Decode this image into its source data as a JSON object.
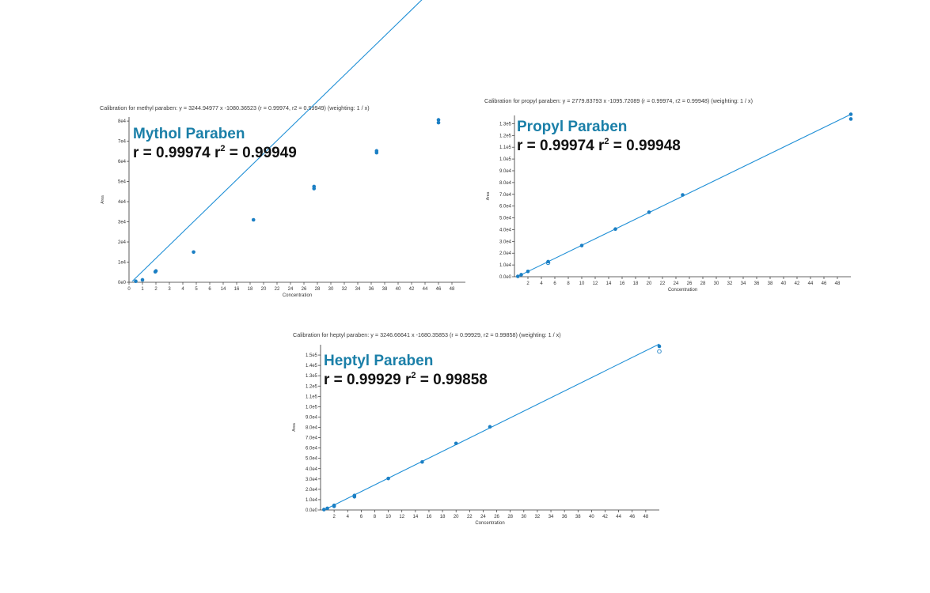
{
  "chart_data": [
    {
      "type": "scatter",
      "title": "Calibration for methyl paraben: y = 3244.94977 x -1080.36523 (r = 0.99974, r2 = 0.99949) (weighting: 1 / x)",
      "annotation_name": "Mythol Paraben",
      "annotation_r_text": "r = 0.99974 r",
      "annotation_sup": "2",
      "annotation_r2_text": " = 0.99949",
      "xlabel": "Concentration",
      "ylabel": "Area",
      "xlim": [
        0,
        50
      ],
      "ylim": [
        0,
        82000
      ],
      "xticks": [
        "0",
        "1",
        "2",
        "3",
        "4",
        "5",
        "6",
        "14",
        "16",
        "18",
        "20",
        "22",
        "24",
        "26",
        "28",
        "30",
        "32",
        "34",
        "36",
        "38",
        "40",
        "42",
        "44",
        "46",
        "48"
      ],
      "yticks": [
        {
          "value": 0,
          "label": "0e0"
        },
        {
          "value": 10000,
          "label": "1e4"
        },
        {
          "value": 20000,
          "label": "2e4"
        },
        {
          "value": 30000,
          "label": "3e4"
        },
        {
          "value": 40000,
          "label": "4e4"
        },
        {
          "value": 50000,
          "label": "5e4"
        },
        {
          "value": 60000,
          "label": "6e4"
        },
        {
          "value": 70000,
          "label": "7e4"
        },
        {
          "value": 80000,
          "label": "8e4"
        }
      ],
      "fit": {
        "slope": 3244.94977,
        "intercept": -1080.36523,
        "x_range": [
          0.5,
          47.5
        ]
      },
      "points": [
        {
          "x": 1.0,
          "y": 500,
          "open": false
        },
        {
          "x": 2.0,
          "y": 1200,
          "open": false
        },
        {
          "x": 3.9,
          "y": 5200,
          "open": false
        },
        {
          "x": 4.0,
          "y": 5600,
          "open": false
        },
        {
          "x": 9.6,
          "y": 15000,
          "open": false
        },
        {
          "x": 18.5,
          "y": 31000,
          "open": false
        },
        {
          "x": 27.5,
          "y": 46500,
          "open": false
        },
        {
          "x": 27.5,
          "y": 47500,
          "open": false
        },
        {
          "x": 36.8,
          "y": 64300,
          "open": false
        },
        {
          "x": 36.8,
          "y": 65200,
          "open": false
        },
        {
          "x": 46.0,
          "y": 79200,
          "open": false
        },
        {
          "x": 46.0,
          "y": 80600,
          "open": false
        }
      ]
    },
    {
      "type": "scatter",
      "title": "Calibration for propyl paraben: y = 2779.83793 x -1095.72089 (r = 0.99974, r2 = 0.99948) (weighting: 1 / x)",
      "annotation_name": "Propyl Paraben",
      "annotation_r_text": "r = 0.99974 r",
      "annotation_sup": "2",
      "annotation_r2_text": " = 0.99948",
      "xlabel": "Concentration",
      "ylabel": "Area",
      "xlim": [
        0,
        50
      ],
      "ylim": [
        0,
        137000
      ],
      "xticks": [
        "2",
        "4",
        "6",
        "8",
        "10",
        "12",
        "14",
        "16",
        "18",
        "20",
        "22",
        "24",
        "26",
        "28",
        "30",
        "32",
        "34",
        "36",
        "38",
        "40",
        "42",
        "44",
        "46",
        "48"
      ],
      "yticks": [
        {
          "value": 0,
          "label": "0.0e0"
        },
        {
          "value": 10000,
          "label": "1.0e4"
        },
        {
          "value": 20000,
          "label": "2.0e4"
        },
        {
          "value": 30000,
          "label": "3.0e4"
        },
        {
          "value": 40000,
          "label": "4.0e4"
        },
        {
          "value": 50000,
          "label": "5.0e4"
        },
        {
          "value": 60000,
          "label": "6.0e4"
        },
        {
          "value": 70000,
          "label": "7.0e4"
        },
        {
          "value": 80000,
          "label": "8.0e4"
        },
        {
          "value": 90000,
          "label": "9.0e4"
        },
        {
          "value": 100000,
          "label": "1.0e5"
        },
        {
          "value": 110000,
          "label": "1.1e5"
        },
        {
          "value": 120000,
          "label": "1.2e5"
        },
        {
          "value": 130000,
          "label": "1.3e5"
        }
      ],
      "fit": {
        "slope": 2779.83793,
        "intercept": -1095.72089,
        "x_range": [
          0.5,
          50
        ]
      },
      "points": [
        {
          "x": 0.5,
          "y": 300,
          "open": false
        },
        {
          "x": 1.0,
          "y": 1700,
          "open": false
        },
        {
          "x": 2.0,
          "y": 4500,
          "open": false
        },
        {
          "x": 5.0,
          "y": 11800,
          "open": true
        },
        {
          "x": 5.0,
          "y": 12800,
          "open": false
        },
        {
          "x": 10.0,
          "y": 26500,
          "open": false
        },
        {
          "x": 15.0,
          "y": 40500,
          "open": false
        },
        {
          "x": 20.0,
          "y": 54800,
          "open": false
        },
        {
          "x": 25.0,
          "y": 69500,
          "open": false
        },
        {
          "x": 50.0,
          "y": 134000,
          "open": false
        },
        {
          "x": 50.0,
          "y": 138000,
          "open": false
        }
      ]
    },
    {
      "type": "scatter",
      "title": "Calibration for heptyl paraben: y = 3246.66641 x -1680.35853 (r = 0.99929, r2 = 0.99858) (weighting: 1 / x)",
      "annotation_name": "Heptyl Paraben",
      "annotation_r_text": "r = 0.99929 r",
      "annotation_sup": "2",
      "annotation_r2_text": " = 0.99858",
      "xlabel": "Concentration",
      "ylabel": "Area",
      "xlim": [
        0,
        50
      ],
      "ylim": [
        0,
        160000
      ],
      "xticks": [
        "2",
        "4",
        "6",
        "8",
        "10",
        "12",
        "14",
        "16",
        "18",
        "20",
        "22",
        "24",
        "26",
        "28",
        "30",
        "32",
        "34",
        "36",
        "38",
        "40",
        "42",
        "44",
        "46",
        "48"
      ],
      "yticks": [
        {
          "value": 0,
          "label": "0.0e0"
        },
        {
          "value": 10000,
          "label": "1.0e4"
        },
        {
          "value": 20000,
          "label": "2.0e4"
        },
        {
          "value": 30000,
          "label": "3.0e4"
        },
        {
          "value": 40000,
          "label": "4.0e4"
        },
        {
          "value": 50000,
          "label": "5.0e4"
        },
        {
          "value": 60000,
          "label": "6.0e4"
        },
        {
          "value": 70000,
          "label": "7.0e4"
        },
        {
          "value": 80000,
          "label": "8.0e4"
        },
        {
          "value": 90000,
          "label": "9.0e4"
        },
        {
          "value": 100000,
          "label": "1.0e5"
        },
        {
          "value": 110000,
          "label": "1.1e5"
        },
        {
          "value": 120000,
          "label": "1.2e5"
        },
        {
          "value": 130000,
          "label": "1.3e5"
        },
        {
          "value": 140000,
          "label": "1.4e5"
        },
        {
          "value": 150000,
          "label": "1.5e5"
        }
      ],
      "fit": {
        "slope": 3246.66641,
        "intercept": -1680.35853,
        "x_range": [
          0.5,
          50
        ]
      },
      "points": [
        {
          "x": 0.5,
          "y": 400,
          "open": false
        },
        {
          "x": 1.0,
          "y": 1600,
          "open": false
        },
        {
          "x": 2.0,
          "y": 3500,
          "open": false
        },
        {
          "x": 2.0,
          "y": 4500,
          "open": false
        },
        {
          "x": 5.0,
          "y": 12800,
          "open": false
        },
        {
          "x": 5.0,
          "y": 14000,
          "open": false
        },
        {
          "x": 10.0,
          "y": 30500,
          "open": false
        },
        {
          "x": 15.0,
          "y": 46500,
          "open": false
        },
        {
          "x": 20.0,
          "y": 64500,
          "open": false
        },
        {
          "x": 25.0,
          "y": 80500,
          "open": false
        },
        {
          "x": 50.0,
          "y": 153500,
          "open": true
        },
        {
          "x": 50.0,
          "y": 158500,
          "open": false
        }
      ]
    }
  ]
}
